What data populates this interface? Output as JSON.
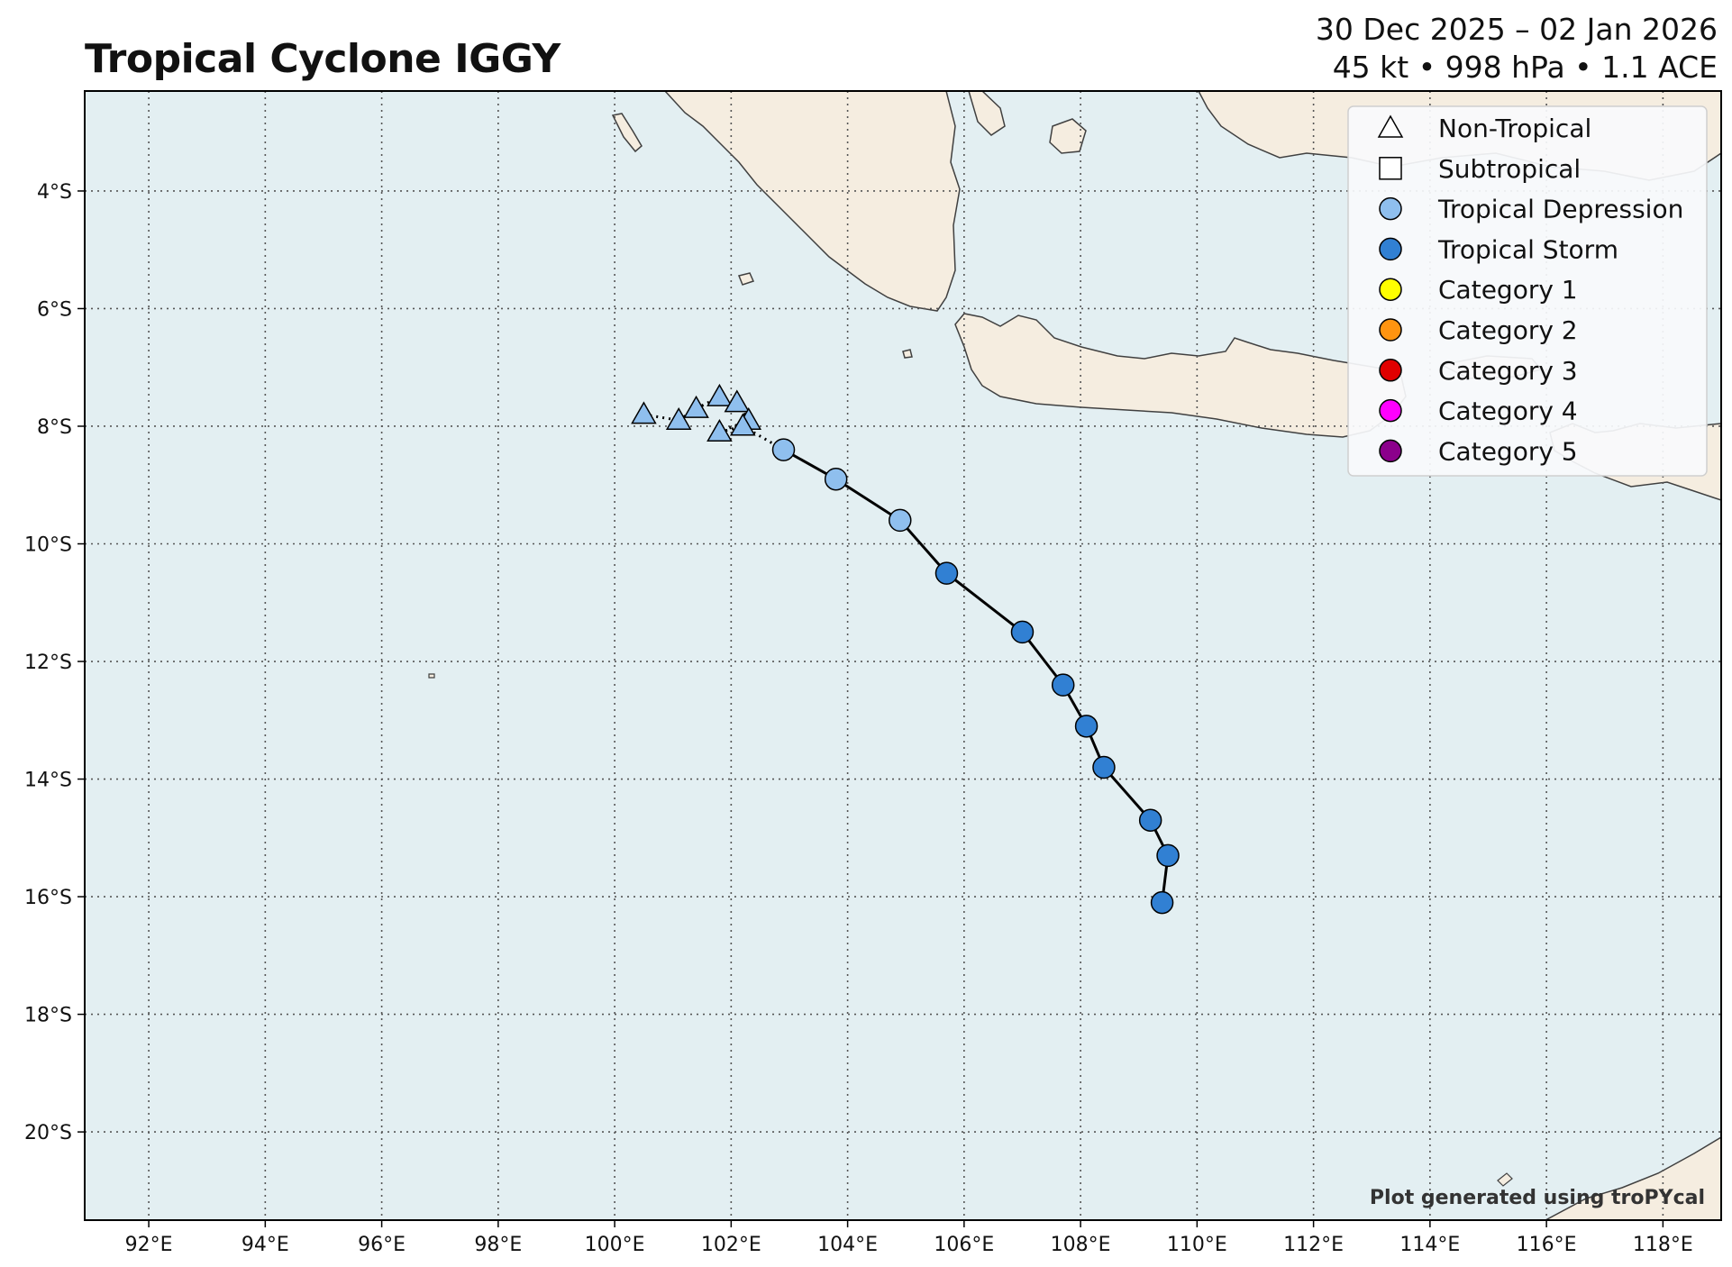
{
  "header": {
    "title": "Tropical Cyclone IGGY",
    "date_range": "30 Dec 2025 – 02 Jan 2026",
    "stats": "45 kt • 998 hPa • 1.1 ACE"
  },
  "map": {
    "lon_range": [
      90.9,
      119.0
    ],
    "lat_range": [
      -21.5,
      -2.3
    ],
    "ocean_color": "#e3eff2",
    "land_color": "#f5ede0",
    "coast_color": "#404040",
    "gridlines": "dotted",
    "credit": "Plot generated using troPYcal",
    "lat_ticks": [
      {
        "value": -4,
        "label": "4°S"
      },
      {
        "value": -6,
        "label": "6°S"
      },
      {
        "value": -8,
        "label": "8°S"
      },
      {
        "value": -10,
        "label": "10°S"
      },
      {
        "value": -12,
        "label": "12°S"
      },
      {
        "value": -14,
        "label": "14°S"
      },
      {
        "value": -16,
        "label": "16°S"
      },
      {
        "value": -18,
        "label": "18°S"
      },
      {
        "value": -20,
        "label": "20°S"
      }
    ],
    "lon_ticks": [
      {
        "value": 92,
        "label": "92°E"
      },
      {
        "value": 94,
        "label": "94°E"
      },
      {
        "value": 96,
        "label": "96°E"
      },
      {
        "value": 98,
        "label": "98°E"
      },
      {
        "value": 100,
        "label": "100°E"
      },
      {
        "value": 102,
        "label": "102°E"
      },
      {
        "value": 104,
        "label": "104°E"
      },
      {
        "value": 106,
        "label": "106°E"
      },
      {
        "value": 108,
        "label": "108°E"
      },
      {
        "value": 110,
        "label": "110°E"
      },
      {
        "value": 112,
        "label": "112°E"
      },
      {
        "value": 114,
        "label": "114°E"
      },
      {
        "value": 116,
        "label": "116°E"
      },
      {
        "value": 118,
        "label": "118°E"
      }
    ]
  },
  "legend": {
    "position": "top-right",
    "items": [
      {
        "label": "Non-Tropical",
        "marker": "triangle",
        "color": "#ffffff"
      },
      {
        "label": "Subtropical",
        "marker": "square",
        "color": "#ffffff"
      },
      {
        "label": "Tropical Depression",
        "marker": "circle",
        "color": "#8fbfee"
      },
      {
        "label": "Tropical Storm",
        "marker": "circle",
        "color": "#3180d3"
      },
      {
        "label": "Category 1",
        "marker": "circle",
        "color": "#ffff00"
      },
      {
        "label": "Category 2",
        "marker": "circle",
        "color": "#ff9410"
      },
      {
        "label": "Category 3",
        "marker": "circle",
        "color": "#e00000"
      },
      {
        "label": "Category 4",
        "marker": "circle",
        "color": "#ff00ff"
      },
      {
        "label": "Category 5",
        "marker": "circle",
        "color": "#8b008b"
      }
    ]
  },
  "track": [
    {
      "lon": 100.5,
      "lat": -7.8,
      "type": "non-tropical"
    },
    {
      "lon": 101.1,
      "lat": -7.9,
      "type": "non-tropical"
    },
    {
      "lon": 101.4,
      "lat": -7.7,
      "type": "non-tropical"
    },
    {
      "lon": 101.8,
      "lat": -7.5,
      "type": "non-tropical"
    },
    {
      "lon": 102.1,
      "lat": -7.6,
      "type": "non-tropical"
    },
    {
      "lon": 102.3,
      "lat": -7.9,
      "type": "non-tropical"
    },
    {
      "lon": 101.8,
      "lat": -8.1,
      "type": "non-tropical"
    },
    {
      "lon": 102.2,
      "lat": -8.0,
      "type": "non-tropical"
    },
    {
      "lon": 102.9,
      "lat": -8.4,
      "type": "tropical-depression"
    },
    {
      "lon": 103.8,
      "lat": -8.9,
      "type": "tropical-depression"
    },
    {
      "lon": 104.9,
      "lat": -9.6,
      "type": "tropical-depression"
    },
    {
      "lon": 105.7,
      "lat": -10.5,
      "type": "tropical-storm"
    },
    {
      "lon": 107.0,
      "lat": -11.5,
      "type": "tropical-storm"
    },
    {
      "lon": 107.7,
      "lat": -12.4,
      "type": "tropical-storm"
    },
    {
      "lon": 108.1,
      "lat": -13.1,
      "type": "tropical-storm"
    },
    {
      "lon": 108.4,
      "lat": -13.8,
      "type": "tropical-storm"
    },
    {
      "lon": 109.2,
      "lat": -14.7,
      "type": "tropical-storm"
    },
    {
      "lon": 109.5,
      "lat": -15.3,
      "type": "tropical-storm"
    },
    {
      "lon": 109.4,
      "lat": -16.1,
      "type": "tropical-storm"
    }
  ]
}
